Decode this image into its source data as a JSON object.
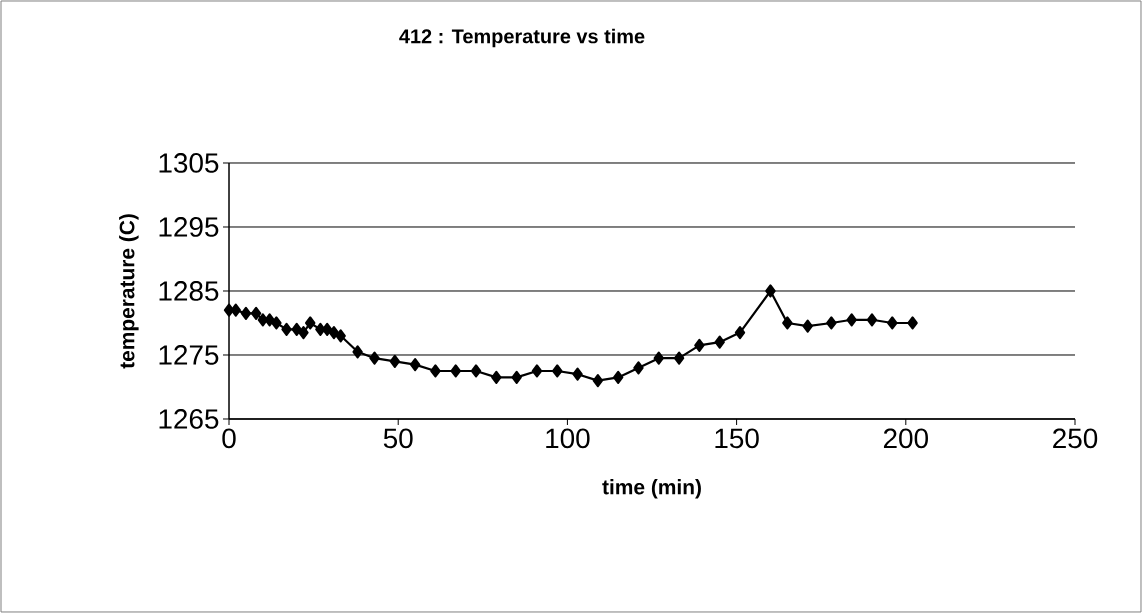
{
  "chart_data": {
    "type": "line",
    "title": "412 : Temperature vs time",
    "xlabel": "time (min)",
    "ylabel": "temperature (C)",
    "x": [
      0,
      2,
      5,
      8,
      10,
      12,
      14,
      17,
      20,
      22,
      24,
      27,
      29,
      31,
      33,
      38,
      43,
      49,
      55,
      61,
      67,
      73,
      79,
      85,
      91,
      97,
      103,
      109,
      115,
      121,
      127,
      133,
      139,
      145,
      151,
      160,
      165,
      171,
      178,
      184,
      190,
      196,
      202
    ],
    "series": [
      {
        "color": "#000000",
        "values": [
          1282,
          1282,
          1281.5,
          1281.5,
          1280.5,
          1280.5,
          1280,
          1279,
          1279,
          1278.5,
          1280,
          1279,
          1279,
          1278.5,
          1278,
          1275.5,
          1274.5,
          1274,
          1273.5,
          1272.5,
          1272.5,
          1272.5,
          1271.5,
          1271.5,
          1272.5,
          1272.5,
          1272,
          1271,
          1271.5,
          1273,
          1274.5,
          1274.5,
          1276.5,
          1277,
          1278.5,
          1285,
          1280,
          1279.5,
          1280,
          1280.5,
          1280.5,
          1280,
          1280
        ]
      }
    ],
    "xlim": [
      0,
      250
    ],
    "xticks": [
      0,
      50,
      100,
      150,
      200,
      250
    ],
    "ylim": [
      1265,
      1305
    ],
    "yticks": [
      1265,
      1275,
      1285,
      1295,
      1305
    ],
    "grid": "y",
    "marker": "diamond",
    "line_style": "solid"
  }
}
